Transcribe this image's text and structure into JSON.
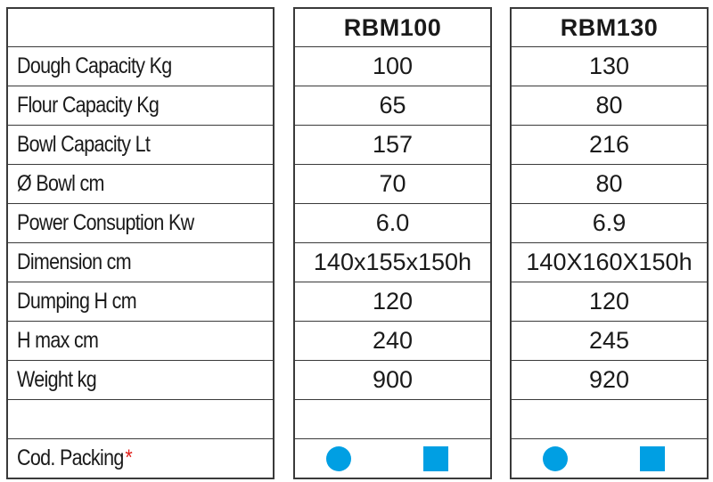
{
  "rows": [
    {
      "label": "Dough Capacity Kg",
      "m1": "100",
      "m2": "130"
    },
    {
      "label": "Flour Capacity Kg",
      "m1": "65",
      "m2": "80"
    },
    {
      "label": "Bowl Capacity Lt",
      "m1": "157",
      "m2": "216"
    },
    {
      "label": "Ø Bowl cm",
      "m1": "70",
      "m2": "80"
    },
    {
      "label": "Power Consuption Kw",
      "m1": "6.0",
      "m2": "6.9"
    },
    {
      "label": "Dimension cm",
      "m1": "140x155x150h",
      "m2": "140X160X150h"
    },
    {
      "label": "Dumping H cm",
      "m1": "120",
      "m2": "120"
    },
    {
      "label": "H max cm",
      "m1": "240",
      "m2": "245"
    },
    {
      "label": "Weight kg",
      "m1": "900",
      "m2": "920"
    },
    {
      "label": "",
      "m1": "",
      "m2": ""
    }
  ],
  "models": [
    "RBM100",
    "RBM130"
  ],
  "packing": {
    "label": "Cod. Packing",
    "asterisk": "*",
    "icons": [
      "circle-icon",
      "square-icon"
    ],
    "color": "#009fe3"
  },
  "colors": {
    "asterisk": "#e0201b",
    "icons": "#009fe3",
    "border": "#3a3a3a"
  }
}
